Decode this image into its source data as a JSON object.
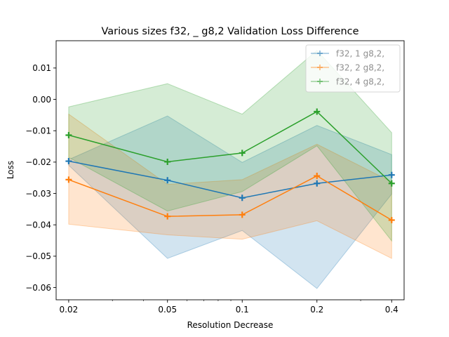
{
  "chart_data": {
    "type": "line",
    "title": "Various sizes f32, _ g8,2 Validation Loss Difference",
    "xlabel": "Resolution Decrease",
    "ylabel": "Loss",
    "xscale": "log",
    "x": [
      0.02,
      0.05,
      0.1,
      0.2,
      0.4
    ],
    "x_tick_labels": [
      "0.02",
      "0.05",
      "0.1",
      "0.2",
      "0.4"
    ],
    "xlim": [
      0.0178,
      0.4489
    ],
    "ylim": [
      -0.0639,
      0.0187
    ],
    "y_ticks": [
      0.01,
      0.0,
      -0.01,
      -0.02,
      -0.03,
      -0.04,
      -0.05,
      -0.06
    ],
    "y_tick_labels": [
      "0.01",
      "0.00",
      "−0.01",
      "−0.02",
      "−0.03",
      "−0.04",
      "−0.05",
      "−0.06"
    ],
    "grid": false,
    "legend_position": "top-right",
    "series": [
      {
        "name": "f32, 1 g8,2,",
        "color": "#1f77b4",
        "values": [
          -0.0197,
          -0.0258,
          -0.0314,
          -0.0268,
          -0.0241
        ],
        "upper": [
          -0.0192,
          -0.0053,
          -0.0201,
          -0.0083,
          -0.0176
        ],
        "lower": [
          -0.021,
          -0.0507,
          -0.0418,
          -0.0603,
          -0.0302
        ]
      },
      {
        "name": "f32, 2 g8,2,",
        "color": "#ff7f0e",
        "values": [
          -0.0256,
          -0.0373,
          -0.0368,
          -0.0244,
          -0.0385
        ],
        "upper": [
          -0.0047,
          -0.0271,
          -0.0256,
          -0.0143,
          -0.0263
        ],
        "lower": [
          -0.0398,
          -0.0432,
          -0.0446,
          -0.0387,
          -0.0507
        ]
      },
      {
        "name": "f32, 4 g8,2,",
        "color": "#2ca02c",
        "values": [
          -0.0114,
          -0.0199,
          -0.0171,
          -0.0039,
          -0.0268
        ],
        "upper": [
          -0.0024,
          0.005,
          -0.0047,
          0.0156,
          -0.0106
        ],
        "lower": [
          -0.0185,
          -0.0356,
          -0.0294,
          -0.0148,
          -0.0451
        ]
      }
    ]
  }
}
